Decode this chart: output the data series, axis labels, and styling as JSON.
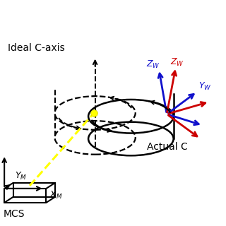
{
  "bg_color": "#ffffff",
  "box_color": "#000000",
  "red_color": "#cc0000",
  "blue_color": "#1111cc",
  "yellow_color": "#ffff00",
  "label_ideal": "Ideal C-axis",
  "label_actual": "Actual C",
  "label_mcs": "MCS",
  "label_xm": "$X_M$",
  "label_ym": "$Y_M$",
  "label_zw_red": "$Z_W$",
  "label_zw_blue": "$Z_W$",
  "label_yw": "$Y_W$",
  "figsize": [
    3.2,
    3.2
  ],
  "dpi": 100
}
